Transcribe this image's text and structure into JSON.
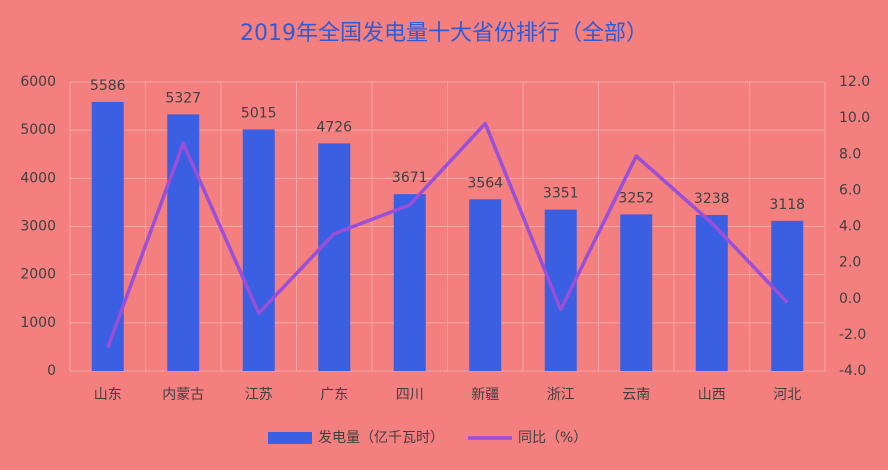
{
  "chart_data": {
    "type": "bar+line",
    "title": "2019年全国发电量十大省份排行（全部）",
    "categories": [
      "山东",
      "内蒙古",
      "江苏",
      "广东",
      "四川",
      "新疆",
      "浙江",
      "云南",
      "山西",
      "河北"
    ],
    "series": [
      {
        "name": "发电量（亿千瓦时）",
        "type": "bar",
        "color": "#3b5fe2",
        "values": [
          5586,
          5327,
          5015,
          4726,
          3671,
          3564,
          3351,
          3252,
          3238,
          3118
        ]
      },
      {
        "name": "同比（%）",
        "type": "line",
        "axis": "y2",
        "color": "#9a4fd8",
        "values": [
          -2.7,
          8.6,
          -0.8,
          3.6,
          5.2,
          9.7,
          -0.6,
          7.9,
          4.2,
          -0.2
        ]
      }
    ],
    "ylim": [
      0,
      6000
    ],
    "yticks": [
      0,
      1000,
      2000,
      3000,
      4000,
      5000,
      6000
    ],
    "y2lim": [
      -4,
      12
    ],
    "y2ticks": [
      {
        "value": -4,
        "label": "-4.0"
      },
      {
        "value": -2,
        "label": "-2.0"
      },
      {
        "value": 0,
        "label": "0.0"
      },
      {
        "value": 2,
        "label": "2.0"
      },
      {
        "value": 4,
        "label": "4.0"
      },
      {
        "value": 6,
        "label": "6.0"
      },
      {
        "value": 8,
        "label": "8.0"
      },
      {
        "value": 10,
        "label": "10.0"
      },
      {
        "value": 12,
        "label": "12.0"
      }
    ],
    "grid": true,
    "legend": "bottom"
  }
}
